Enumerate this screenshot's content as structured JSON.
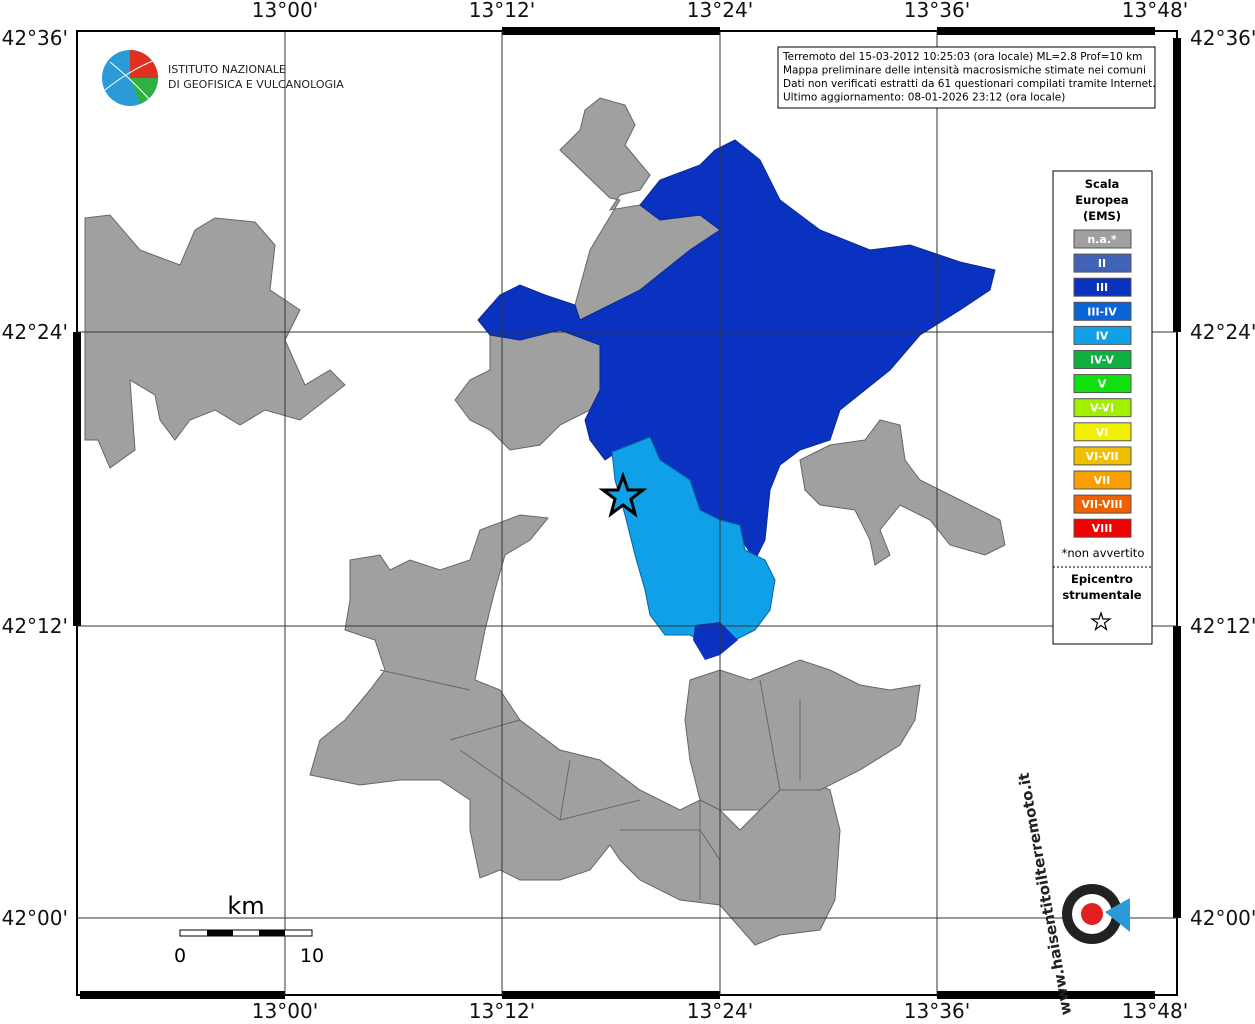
{
  "logo": {
    "line1": "ISTITUTO NAZIONALE",
    "line2": "DI GEOFISICA E VULCANOLOGIA"
  },
  "info": [
    "Terremoto del 15-03-2012 10:25:03 (ora locale) ML=2.8 Prof=10 km",
    "Mappa preliminare delle intensità macrosismiche stimate nei comuni",
    "Dati non verificati estratti da 61 questionari compilati tramite Internet.",
    "Ultimo aggiornamento: 08-01-2026 23:12 (ora locale)"
  ],
  "longitude_labels": [
    "13°00'",
    "13°12'",
    "13°24'",
    "13°36'",
    "13°48'"
  ],
  "latitude_labels": [
    "42°36'",
    "42°24'",
    "42°12'",
    "42°00'"
  ],
  "legend": {
    "title": [
      "Scala",
      "Europea",
      "(EMS)"
    ],
    "items": [
      {
        "label": "n.a.*",
        "color": "#a0a0a0"
      },
      {
        "label": "II",
        "color": "#4262b8"
      },
      {
        "label": "III",
        "color": "#0a32c0"
      },
      {
        "label": "III-IV",
        "color": "#0a64d8"
      },
      {
        "label": "IV",
        "color": "#10a0e8"
      },
      {
        "label": "IV-V",
        "color": "#10b040"
      },
      {
        "label": "V",
        "color": "#10e010"
      },
      {
        "label": "V-VI",
        "color": "#a0f000"
      },
      {
        "label": "VI",
        "color": "#f0f000"
      },
      {
        "label": "VI-VII",
        "color": "#f0c000"
      },
      {
        "label": "VII",
        "color": "#f8a000"
      },
      {
        "label": "VII-VIII",
        "color": "#f06000"
      },
      {
        "label": "VIII",
        "color": "#f00000"
      }
    ],
    "note": "*non avvertito",
    "epicenter": [
      "Epicentro",
      "strumentale"
    ]
  },
  "scale_bar": {
    "unit": "km",
    "labels": [
      "0",
      "10"
    ]
  },
  "watermark": "www.haisentitoilterremoto.it"
}
